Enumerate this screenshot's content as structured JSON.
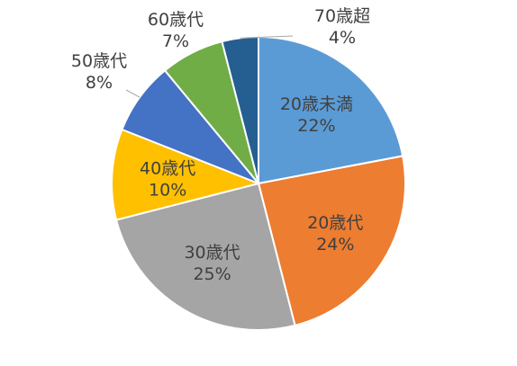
{
  "chart_data": {
    "type": "pie",
    "categories": [
      "20歳未満",
      "20歳代",
      "30歳代",
      "40歳代",
      "50歳代",
      "60歳代",
      "70歳超"
    ],
    "values": [
      22,
      24,
      25,
      10,
      8,
      7,
      4
    ],
    "value_labels": [
      "22%",
      "24%",
      "25%",
      "10%",
      "8%",
      "7%",
      "4%"
    ],
    "colors": [
      "#5B9BD5",
      "#ED7D31",
      "#A5A5A5",
      "#FFC000",
      "#4472C4",
      "#70AD47",
      "#255E91"
    ],
    "title": "",
    "legend": "none",
    "start_angle_deg": 0,
    "direction": "clockwise"
  }
}
